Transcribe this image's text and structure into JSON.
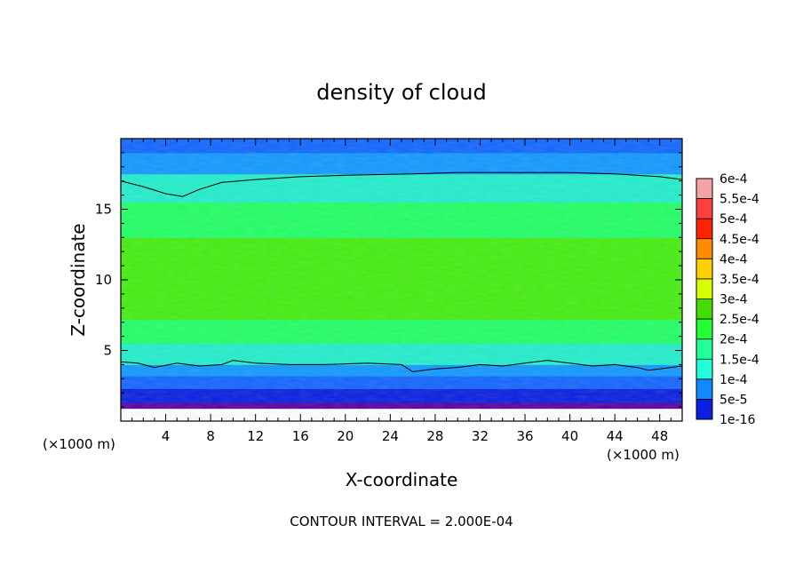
{
  "chart_data": {
    "type": "heatmap",
    "title": "density of cloud",
    "xlabel": "X-coordinate",
    "ylabel": "Z-coordinate",
    "x_unit_left": "(×1000 m)",
    "x_unit_right": "(×1000 m)",
    "xlim": [
      0,
      50
    ],
    "ylim": [
      0,
      20
    ],
    "x_ticks": [
      4,
      8,
      12,
      16,
      20,
      24,
      28,
      32,
      36,
      40,
      44,
      48
    ],
    "y_ticks": [
      5,
      10,
      15
    ],
    "grid": false,
    "legend_placement": "right",
    "colorbar": {
      "labels": [
        "6e-4",
        "5.5e-4",
        "5e-4",
        "4.5e-4",
        "4e-4",
        "3.5e-4",
        "3e-4",
        "2.5e-4",
        "2e-4",
        "1.5e-4",
        "1e-4",
        "5e-5",
        "1e-16"
      ],
      "colors": [
        "#f4a3a3",
        "#ff4040",
        "#ff2200",
        "#ff8c00",
        "#ffd000",
        "#d8ff00",
        "#44dd00",
        "#22ff33",
        "#22ff99",
        "#22ffdd",
        "#1188ff",
        "#0a1fe0",
        "#5a00a0"
      ]
    },
    "layers": [
      {
        "z_range": [
          0,
          0.9
        ],
        "level": "none",
        "color": "#ffffff"
      },
      {
        "z_range": [
          0.9,
          1.3
        ],
        "level": "1e-16",
        "color": "#5a00a0"
      },
      {
        "z_range": [
          1.3,
          2.3
        ],
        "level": "5e-5",
        "color": "#0a1fe0"
      },
      {
        "z_range": [
          2.3,
          3.2
        ],
        "level": "1e-4",
        "color": "#1166ff"
      },
      {
        "z_range": [
          3.2,
          4.0
        ],
        "level": "1.5e-4",
        "color": "#1199ff"
      },
      {
        "z_range": [
          4.0,
          5.5
        ],
        "level": "2e-4",
        "color": "#22eecc"
      },
      {
        "z_range": [
          5.5,
          7.2
        ],
        "level": "2.5e-4",
        "color": "#22ff66"
      },
      {
        "z_range": [
          7.2,
          13.0
        ],
        "level": "3e-4",
        "color": "#44ee11"
      },
      {
        "z_range": [
          13.0,
          15.5
        ],
        "level": "2.5e-4",
        "color": "#22ff66"
      },
      {
        "z_range": [
          15.5,
          17.5
        ],
        "level": "2e-4",
        "color": "#22eecc"
      },
      {
        "z_range": [
          17.5,
          19.0
        ],
        "level": "1.5e-4",
        "color": "#1199ff"
      },
      {
        "z_range": [
          19.0,
          20.0
        ],
        "level": "1e-4",
        "color": "#1166ff"
      }
    ],
    "contour_lines": [
      {
        "level": "2e-4",
        "points": [
          [
            0,
            17.0
          ],
          [
            2,
            16.6
          ],
          [
            4,
            16.1
          ],
          [
            5.5,
            15.9
          ],
          [
            7,
            16.4
          ],
          [
            9,
            16.9
          ],
          [
            12,
            17.1
          ],
          [
            16,
            17.3
          ],
          [
            20,
            17.4
          ],
          [
            26,
            17.5
          ],
          [
            30,
            17.6
          ],
          [
            36,
            17.6
          ],
          [
            40,
            17.6
          ],
          [
            44,
            17.5
          ],
          [
            48,
            17.3
          ],
          [
            50,
            17.1
          ]
        ]
      },
      {
        "level": "2e-4",
        "points": [
          [
            0,
            4.2
          ],
          [
            1.5,
            4.1
          ],
          [
            3,
            3.8
          ],
          [
            5,
            4.1
          ],
          [
            7,
            3.9
          ],
          [
            9,
            4.0
          ],
          [
            10,
            4.3
          ],
          [
            12,
            4.1
          ],
          [
            15,
            4.0
          ],
          [
            18,
            4.0
          ],
          [
            22,
            4.1
          ],
          [
            25,
            4.0
          ],
          [
            26,
            3.5
          ],
          [
            28,
            3.7
          ],
          [
            30,
            3.8
          ],
          [
            32,
            4.0
          ],
          [
            34,
            3.9
          ],
          [
            36,
            4.1
          ],
          [
            38,
            4.3
          ],
          [
            40,
            4.1
          ],
          [
            42,
            3.9
          ],
          [
            44,
            4.0
          ],
          [
            46,
            3.8
          ],
          [
            47,
            3.6
          ],
          [
            48,
            3.7
          ],
          [
            50,
            3.9
          ]
        ]
      }
    ]
  },
  "footer": {
    "contour_interval": "CONTOUR INTERVAL = 2.000E-04"
  }
}
